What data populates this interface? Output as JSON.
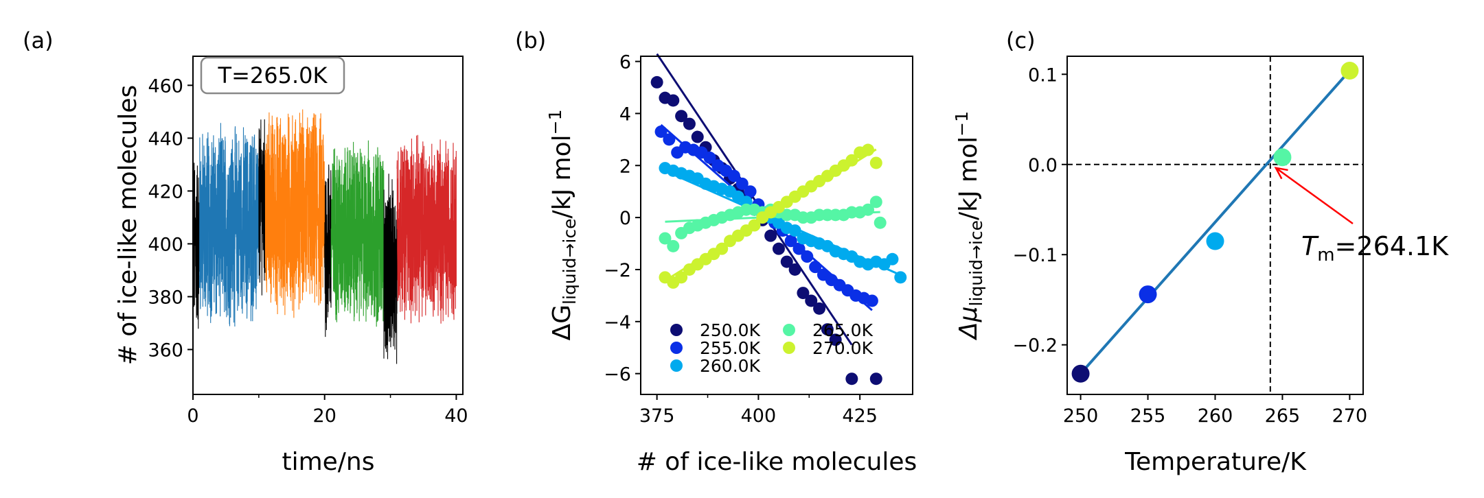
{
  "panels": {
    "a": {
      "letter": "(a)",
      "xlabel": "time/ns",
      "ylabel": "# of ice-like molecules",
      "annotation": "T=265.0K"
    },
    "b": {
      "letter": "(b)",
      "xlabel": "# of ice-like molecules",
      "ylabel_main": "ΔG",
      "ylabel_sub": "liquid→ice",
      "ylabel_tail": "/kJ mol",
      "ylabel_sup": "−1"
    },
    "c": {
      "letter": "(c)",
      "xlabel": "Temperature/K",
      "ylabel_main": "Δμ",
      "ylabel_sub": "liquid→ice",
      "ylabel_tail": "/kJ mol",
      "ylabel_sup": "−1",
      "annotation_main": "T",
      "annotation_sub": "m",
      "annotation_tail": "=264.1K"
    }
  },
  "chart_data": [
    {
      "panel": "a",
      "type": "line",
      "xlabel": "time/ns",
      "ylabel": "# of ice-like molecules",
      "xlim": [
        0,
        41
      ],
      "ylim": [
        343,
        471
      ],
      "xticks": [
        0,
        20,
        40
      ],
      "yticks": [
        360,
        380,
        400,
        420,
        440,
        460
      ],
      "annotation": "T=265.0K",
      "series": [
        {
          "color": "#000000",
          "range": [
            0,
            1
          ],
          "mean": 400,
          "amp": 30
        },
        {
          "color": "#1f77b4",
          "range": [
            1,
            10
          ],
          "mean": 407,
          "amp": 32
        },
        {
          "color": "#000000",
          "range": [
            10,
            11
          ],
          "mean": 415,
          "amp": 28
        },
        {
          "color": "#ff7f0e",
          "range": [
            11,
            20
          ],
          "mean": 412,
          "amp": 33
        },
        {
          "color": "#000000",
          "range": [
            20,
            21
          ],
          "mean": 400,
          "amp": 30
        },
        {
          "color": "#2ca02c",
          "range": [
            21,
            29
          ],
          "mean": 404,
          "amp": 30
        },
        {
          "color": "#000000",
          "range": [
            29,
            31
          ],
          "mean": 390,
          "amp": 30
        },
        {
          "color": "#d62728",
          "range": [
            31,
            40
          ],
          "mean": 406,
          "amp": 30
        }
      ]
    },
    {
      "panel": "b",
      "type": "scatter",
      "xlabel": "# of ice-like molecules",
      "ylabel": "ΔG liquid→ice /kJ mol−1",
      "xlim": [
        371,
        438
      ],
      "ylim": [
        -6.8,
        6.2
      ],
      "xticks": [
        375,
        400,
        425
      ],
      "yticks": [
        -6,
        -4,
        -2,
        0,
        2,
        4,
        6
      ],
      "legend_position": "lower-left",
      "series": [
        {
          "name": "250.0K",
          "color": "#0d0d73",
          "slope": -0.233,
          "fit_x": [
            375,
            423
          ],
          "fit_intercept_at": 402,
          "x": [
            375,
            377,
            379,
            381,
            383,
            385,
            387,
            389,
            391,
            393,
            395,
            397,
            399,
            401,
            403,
            405,
            407,
            409,
            411,
            413,
            415,
            417,
            419,
            423,
            429
          ],
          "y": [
            5.2,
            4.6,
            4.5,
            3.9,
            3.6,
            3.1,
            2.7,
            2.2,
            1.9,
            1.5,
            1.1,
            0.8,
            0.3,
            -0.1,
            -0.7,
            -1.2,
            -1.7,
            -2.0,
            -2.9,
            -3.2,
            -3.5,
            -4.3,
            -4.7,
            -6.2,
            -6.2
          ]
        },
        {
          "name": "255.0K",
          "color": "#0a2fe6",
          "slope": -0.137,
          "fit_x": [
            376,
            428
          ],
          "fit_intercept_at": 402,
          "x": [
            376,
            378,
            380,
            382,
            384,
            386,
            388,
            390,
            392,
            394,
            396,
            398,
            400,
            402,
            404,
            406,
            408,
            410,
            412,
            414,
            416,
            418,
            420,
            422,
            424,
            426,
            428
          ],
          "y": [
            3.3,
            3.0,
            2.5,
            2.7,
            2.6,
            2.5,
            2.3,
            2.0,
            1.8,
            1.6,
            1.3,
            1.0,
            0.5,
            0.2,
            -0.2,
            -0.5,
            -0.9,
            -1.2,
            -1.5,
            -1.9,
            -2.2,
            -2.4,
            -2.6,
            -2.8,
            -3.0,
            -3.1,
            -3.2
          ]
        },
        {
          "name": "260.0K",
          "color": "#00aaee",
          "slope": -0.069,
          "fit_x": [
            377,
            434
          ],
          "fit_intercept_at": 403,
          "x": [
            377,
            379,
            381,
            383,
            385,
            387,
            389,
            391,
            393,
            395,
            397,
            399,
            401,
            403,
            405,
            407,
            409,
            411,
            413,
            415,
            417,
            419,
            421,
            423,
            425,
            427,
            429,
            431,
            433,
            435
          ],
          "y": [
            1.9,
            1.8,
            1.7,
            1.6,
            1.5,
            1.3,
            1.2,
            1.1,
            1.0,
            0.8,
            0.6,
            0.3,
            0.1,
            0.0,
            -0.2,
            -0.4,
            -0.5,
            -0.8,
            -0.9,
            -1.0,
            -1.1,
            -1.3,
            -1.4,
            -1.5,
            -1.7,
            -1.8,
            -1.7,
            -1.8,
            -1.6,
            -2.3
          ]
        },
        {
          "name": "265.0K",
          "color": "#55f5a5",
          "slope": 0.007,
          "fit_x": [
            377,
            430
          ],
          "fit_intercept_at": 400,
          "x": [
            377,
            379,
            381,
            383,
            385,
            387,
            389,
            391,
            393,
            395,
            397,
            399,
            401,
            403,
            405,
            407,
            409,
            411,
            413,
            415,
            417,
            419,
            421,
            423,
            425,
            427,
            429,
            430
          ],
          "y": [
            -0.8,
            -1.1,
            -0.6,
            -0.4,
            -0.3,
            -0.2,
            -0.1,
            0.0,
            0.1,
            0.2,
            0.3,
            0.3,
            0.2,
            0.3,
            0.2,
            0.1,
            0.1,
            0.0,
            0.0,
            0.1,
            0.1,
            0.1,
            0.1,
            0.2,
            0.2,
            0.3,
            0.6,
            -0.2
          ]
        },
        {
          "name": "270.0K",
          "color": "#ccf22f",
          "slope": 0.097,
          "fit_x": [
            377,
            429
          ],
          "fit_intercept_at": 402,
          "x": [
            377,
            379,
            381,
            383,
            385,
            387,
            389,
            391,
            393,
            395,
            397,
            399,
            401,
            403,
            405,
            407,
            409,
            411,
            413,
            415,
            417,
            419,
            421,
            423,
            425,
            427,
            429
          ],
          "y": [
            -2.3,
            -2.5,
            -2.3,
            -2.0,
            -1.8,
            -1.6,
            -1.4,
            -1.2,
            -0.9,
            -0.7,
            -0.5,
            -0.3,
            0.0,
            0.2,
            0.4,
            0.6,
            0.8,
            1.0,
            1.2,
            1.4,
            1.6,
            1.8,
            2.0,
            2.2,
            2.5,
            2.6,
            2.1
          ]
        }
      ]
    },
    {
      "panel": "c",
      "type": "scatter",
      "xlabel": "Temperature/K",
      "ylabel": "Δμ liquid→ice /kJ mol−1",
      "xlim": [
        249,
        271
      ],
      "ylim": [
        -0.255,
        0.12
      ],
      "xticks": [
        250,
        255,
        260,
        265,
        270
      ],
      "yticks": [
        -0.2,
        -0.1,
        0.0,
        0.1
      ],
      "reference_lines": {
        "vertical_x": 264.1,
        "horizontal_y": 0.0
      },
      "fit": {
        "x": [
          250,
          270
        ],
        "y": [
          -0.232,
          0.104
        ]
      },
      "annotation": {
        "text": "T_m=264.1K",
        "arrow_to": [
          264.1,
          0.0
        ]
      },
      "points": [
        {
          "x": 250,
          "y": -0.232,
          "color": "#0d0d73"
        },
        {
          "x": 255,
          "y": -0.144,
          "color": "#0a2fe6"
        },
        {
          "x": 260,
          "y": -0.085,
          "color": "#00aaee"
        },
        {
          "x": 265,
          "y": 0.008,
          "color": "#55f5a5"
        },
        {
          "x": 270,
          "y": 0.104,
          "color": "#ccf22f"
        }
      ]
    }
  ],
  "colors": {
    "fit_line_c": "#1f77b4",
    "arrow": "#ff0000"
  }
}
